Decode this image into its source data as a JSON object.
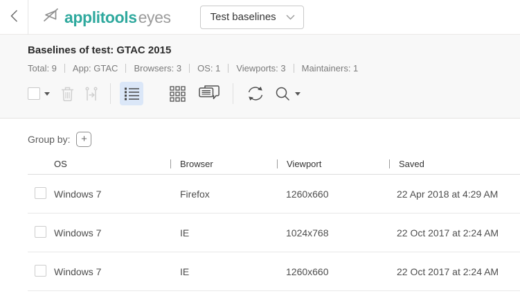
{
  "colors": {
    "brand_teal": "#2fa99e",
    "logo_gray": "#9b9b9b",
    "active_tool_bg": "#dbe7f8"
  },
  "header": {
    "logo_brand": "applitools",
    "logo_product": "eyes",
    "view_selector": "Test baselines"
  },
  "summary": {
    "title": "Baselines of test: GTAC 2015",
    "stats": [
      {
        "label": "Total",
        "value": "9"
      },
      {
        "label": "App",
        "value": "GTAC"
      },
      {
        "label": "Browsers",
        "value": "3"
      },
      {
        "label": "OS",
        "value": "1"
      },
      {
        "label": "Viewports",
        "value": "3"
      },
      {
        "label": "Maintainers",
        "value": "1"
      }
    ]
  },
  "toolbar": {
    "tools": [
      "select-all",
      "delete",
      "merge",
      "list-view",
      "grid-view",
      "comments",
      "refresh",
      "search"
    ],
    "active_tool": "list-view",
    "disabled_tools": [
      "delete",
      "merge"
    ]
  },
  "group_by": {
    "label": "Group by:",
    "add_button": "+"
  },
  "table": {
    "columns": [
      "OS",
      "Browser",
      "Viewport",
      "Saved"
    ],
    "rows": [
      {
        "os": "Windows 7",
        "browser": "Firefox",
        "viewport": "1260x660",
        "saved": "22 Apr 2018 at 4:29 AM"
      },
      {
        "os": "Windows 7",
        "browser": "IE",
        "viewport": "1024x768",
        "saved": "22 Oct 2017 at 2:24 AM"
      },
      {
        "os": "Windows 7",
        "browser": "IE",
        "viewport": "1260x660",
        "saved": "22 Oct 2017 at 2:24 AM"
      }
    ]
  }
}
